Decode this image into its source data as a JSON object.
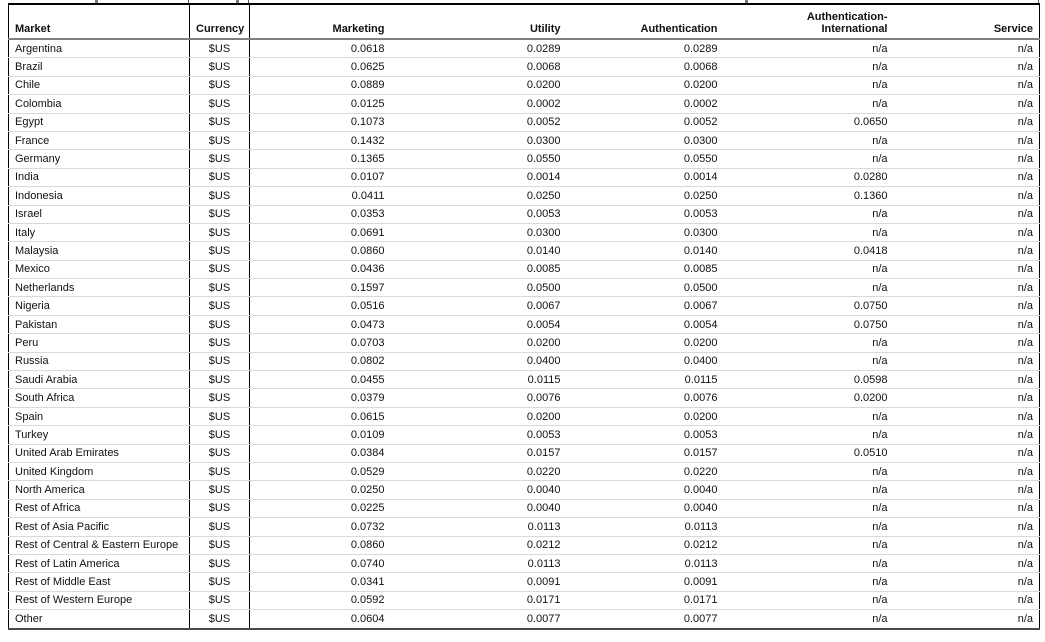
{
  "colors": {
    "background": "#ffffff",
    "text": "#111111",
    "outer_border": "#000000",
    "header_underline": "#808080",
    "row_grid_line": "#d9d9d9",
    "bottom_border": "#4a4a4a"
  },
  "table": {
    "headers": [
      {
        "id": "market",
        "label": "Market",
        "align": "left"
      },
      {
        "id": "currency",
        "label": "Currency",
        "align": "center"
      },
      {
        "id": "marketing",
        "label": "Marketing",
        "align": "right"
      },
      {
        "id": "utility",
        "label": "Utility",
        "align": "right"
      },
      {
        "id": "authentication",
        "label": "Authentication",
        "align": "right"
      },
      {
        "id": "authentication_international",
        "label": "Authentication-\nInternational",
        "align": "right"
      },
      {
        "id": "service",
        "label": "Service",
        "align": "right"
      }
    ],
    "rows": [
      {
        "market": "Argentina",
        "currency": "$US",
        "values": [
          "0.0618",
          "0.0289",
          "0.0289",
          "n/a",
          "n/a"
        ]
      },
      {
        "market": "Brazil",
        "currency": "$US",
        "values": [
          "0.0625",
          "0.0068",
          "0.0068",
          "n/a",
          "n/a"
        ]
      },
      {
        "market": "Chile",
        "currency": "$US",
        "values": [
          "0.0889",
          "0.0200",
          "0.0200",
          "n/a",
          "n/a"
        ]
      },
      {
        "market": "Colombia",
        "currency": "$US",
        "values": [
          "0.0125",
          "0.0002",
          "0.0002",
          "n/a",
          "n/a"
        ]
      },
      {
        "market": "Egypt",
        "currency": "$US",
        "values": [
          "0.1073",
          "0.0052",
          "0.0052",
          "0.0650",
          "n/a"
        ]
      },
      {
        "market": "France",
        "currency": "$US",
        "values": [
          "0.1432",
          "0.0300",
          "0.0300",
          "n/a",
          "n/a"
        ]
      },
      {
        "market": "Germany",
        "currency": "$US",
        "values": [
          "0.1365",
          "0.0550",
          "0.0550",
          "n/a",
          "n/a"
        ]
      },
      {
        "market": "India",
        "currency": "$US",
        "values": [
          "0.0107",
          "0.0014",
          "0.0014",
          "0.0280",
          "n/a"
        ]
      },
      {
        "market": "Indonesia",
        "currency": "$US",
        "values": [
          "0.0411",
          "0.0250",
          "0.0250",
          "0.1360",
          "n/a"
        ]
      },
      {
        "market": "Israel",
        "currency": "$US",
        "values": [
          "0.0353",
          "0.0053",
          "0.0053",
          "n/a",
          "n/a"
        ]
      },
      {
        "market": "Italy",
        "currency": "$US",
        "values": [
          "0.0691",
          "0.0300",
          "0.0300",
          "n/a",
          "n/a"
        ]
      },
      {
        "market": "Malaysia",
        "currency": "$US",
        "values": [
          "0.0860",
          "0.0140",
          "0.0140",
          "0.0418",
          "n/a"
        ]
      },
      {
        "market": "Mexico",
        "currency": "$US",
        "values": [
          "0.0436",
          "0.0085",
          "0.0085",
          "n/a",
          "n/a"
        ]
      },
      {
        "market": "Netherlands",
        "currency": "$US",
        "values": [
          "0.1597",
          "0.0500",
          "0.0500",
          "n/a",
          "n/a"
        ]
      },
      {
        "market": "Nigeria",
        "currency": "$US",
        "values": [
          "0.0516",
          "0.0067",
          "0.0067",
          "0.0750",
          "n/a"
        ]
      },
      {
        "market": "Pakistan",
        "currency": "$US",
        "values": [
          "0.0473",
          "0.0054",
          "0.0054",
          "0.0750",
          "n/a"
        ]
      },
      {
        "market": "Peru",
        "currency": "$US",
        "values": [
          "0.0703",
          "0.0200",
          "0.0200",
          "n/a",
          "n/a"
        ]
      },
      {
        "market": "Russia",
        "currency": "$US",
        "values": [
          "0.0802",
          "0.0400",
          "0.0400",
          "n/a",
          "n/a"
        ]
      },
      {
        "market": "Saudi Arabia",
        "currency": "$US",
        "values": [
          "0.0455",
          "0.0115",
          "0.0115",
          "0.0598",
          "n/a"
        ]
      },
      {
        "market": "South Africa",
        "currency": "$US",
        "values": [
          "0.0379",
          "0.0076",
          "0.0076",
          "0.0200",
          "n/a"
        ]
      },
      {
        "market": "Spain",
        "currency": "$US",
        "values": [
          "0.0615",
          "0.0200",
          "0.0200",
          "n/a",
          "n/a"
        ]
      },
      {
        "market": "Turkey",
        "currency": "$US",
        "values": [
          "0.0109",
          "0.0053",
          "0.0053",
          "n/a",
          "n/a"
        ]
      },
      {
        "market": "United Arab Emirates",
        "currency": "$US",
        "values": [
          "0.0384",
          "0.0157",
          "0.0157",
          "0.0510",
          "n/a"
        ]
      },
      {
        "market": "United Kingdom",
        "currency": "$US",
        "values": [
          "0.0529",
          "0.0220",
          "0.0220",
          "n/a",
          "n/a"
        ]
      },
      {
        "market": "North America",
        "currency": "$US",
        "values": [
          "0.0250",
          "0.0040",
          "0.0040",
          "n/a",
          "n/a"
        ]
      },
      {
        "market": "Rest of Africa",
        "currency": "$US",
        "values": [
          "0.0225",
          "0.0040",
          "0.0040",
          "n/a",
          "n/a"
        ]
      },
      {
        "market": "Rest of Asia Pacific",
        "currency": "$US",
        "values": [
          "0.0732",
          "0.0113",
          "0.0113",
          "n/a",
          "n/a"
        ]
      },
      {
        "market": "Rest of Central & Eastern Europe",
        "currency": "$US",
        "values": [
          "0.0860",
          "0.0212",
          "0.0212",
          "n/a",
          "n/a"
        ]
      },
      {
        "market": "Rest of Latin America",
        "currency": "$US",
        "values": [
          "0.0740",
          "0.0113",
          "0.0113",
          "n/a",
          "n/a"
        ]
      },
      {
        "market": "Rest of Middle East",
        "currency": "$US",
        "values": [
          "0.0341",
          "0.0091",
          "0.0091",
          "n/a",
          "n/a"
        ]
      },
      {
        "market": "Rest of Western Europe",
        "currency": "$US",
        "values": [
          "0.0592",
          "0.0171",
          "0.0171",
          "n/a",
          "n/a"
        ]
      },
      {
        "market": "Other",
        "currency": "$US",
        "values": [
          "0.0604",
          "0.0077",
          "0.0077",
          "n/a",
          "n/a"
        ]
      }
    ]
  }
}
